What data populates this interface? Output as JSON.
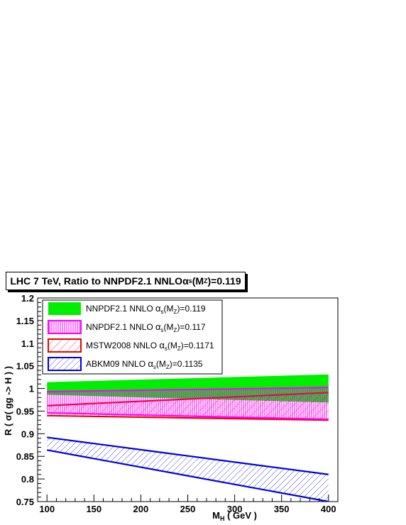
{
  "chart_data": {
    "type": "area",
    "title": {
      "main": "LHC 7 TeV, Ratio to NNPDF2.1 NNLO",
      "alpha": "α",
      "sub_s": "s",
      "paren_open": "(M",
      "sub_z": "Z",
      "tail": ")=0.119"
    },
    "xlabel": {
      "main": "M",
      "sub": "H",
      "tail": " ( GeV )"
    },
    "ylabel": "R ( σ( gg -> H ) )",
    "xlim": [
      90,
      410
    ],
    "ylim": [
      0.75,
      1.2
    ],
    "x_ticks": [
      100,
      150,
      200,
      250,
      300,
      350,
      400
    ],
    "y_ticks": [
      0.75,
      0.8,
      0.85,
      0.9,
      0.95,
      1,
      1.05,
      1.1,
      1.15,
      1.2
    ],
    "y_tick_labels": [
      "0.75",
      "0.8",
      "0.85",
      "0.9",
      "0.95",
      "1",
      "1.05",
      "1.1",
      "1.15",
      "1.2"
    ],
    "legend_position": "top-left",
    "series": [
      {
        "legend": "NNPDF2.1 NNLO",
        "alpha_val": ")=0.119",
        "color": "#00ee00",
        "style": "solid-fill",
        "x": [
          100,
          400
        ],
        "upper": [
          1.014,
          1.031
        ],
        "lower": [
          0.986,
          0.969
        ]
      },
      {
        "legend": "NNPDF2.1 NNLO",
        "alpha_val": ")=0.117",
        "color": "#ff00ff",
        "style": "vertical-hatch",
        "x": [
          100,
          400
        ],
        "upper": [
          0.993,
          1.002
        ],
        "lower": [
          0.946,
          0.932
        ]
      },
      {
        "legend": "MSTW2008 NNLO",
        "alpha_val": ")=0.1171",
        "color": "#ee0000",
        "style": "diagonal-hatch",
        "x": [
          100,
          400
        ],
        "upper": [
          0.962,
          0.991
        ],
        "lower": [
          0.94,
          0.93
        ]
      },
      {
        "legend": "ABKM09 NNLO",
        "alpha_val": ")=0.1135",
        "color": "#0000dd",
        "style": "diagonal-hatch",
        "x": [
          100,
          400
        ],
        "upper": [
          0.892,
          0.81
        ],
        "lower": [
          0.864,
          0.75
        ]
      }
    ],
    "alpha_symbol": "α",
    "alpha_sub": "s",
    "mz_open": "(M",
    "mz_sub": "Z"
  }
}
